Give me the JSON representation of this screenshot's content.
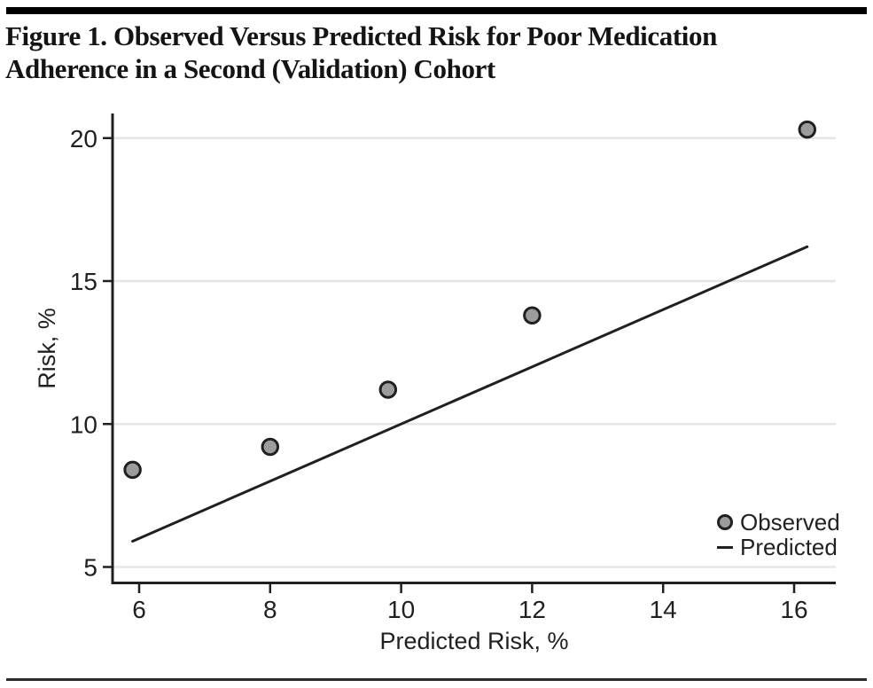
{
  "figure": {
    "title_lines": [
      "Figure 1. Observed Versus Predicted Risk for Poor Medication",
      "Adherence in a Second (Validation) Cohort"
    ]
  },
  "legend": {
    "observed": "Observed",
    "predicted": "Predicted"
  },
  "colors": {
    "ink": "#231f20",
    "marker_fill": "#9c9c9c",
    "grid": "#e6e6e6",
    "rule": "#000000"
  },
  "chart_data": {
    "type": "scatter",
    "title": "Figure 1. Observed Versus Predicted Risk for Poor Medication Adherence in a Second (Validation) Cohort",
    "xlabel": "Predicted Risk, %",
    "ylabel": "Risk, %",
    "x_ticks": [
      6,
      8,
      10,
      12,
      14,
      16
    ],
    "y_ticks": [
      5,
      10,
      15,
      20
    ],
    "xlim": [
      5.6,
      16.65
    ],
    "ylim": [
      4.4,
      20.8
    ],
    "grid": "horizontal",
    "legend_position": "inside-bottom-right",
    "series": [
      {
        "name": "Observed",
        "type": "scatter",
        "points": [
          {
            "x": 5.9,
            "y": 8.4
          },
          {
            "x": 8.0,
            "y": 9.2
          },
          {
            "x": 9.8,
            "y": 11.2
          },
          {
            "x": 12.0,
            "y": 13.8
          },
          {
            "x": 16.2,
            "y": 20.3
          }
        ]
      },
      {
        "name": "Predicted",
        "type": "line",
        "points": [
          {
            "x": 5.9,
            "y": 5.9
          },
          {
            "x": 16.2,
            "y": 16.2
          }
        ]
      }
    ]
  }
}
